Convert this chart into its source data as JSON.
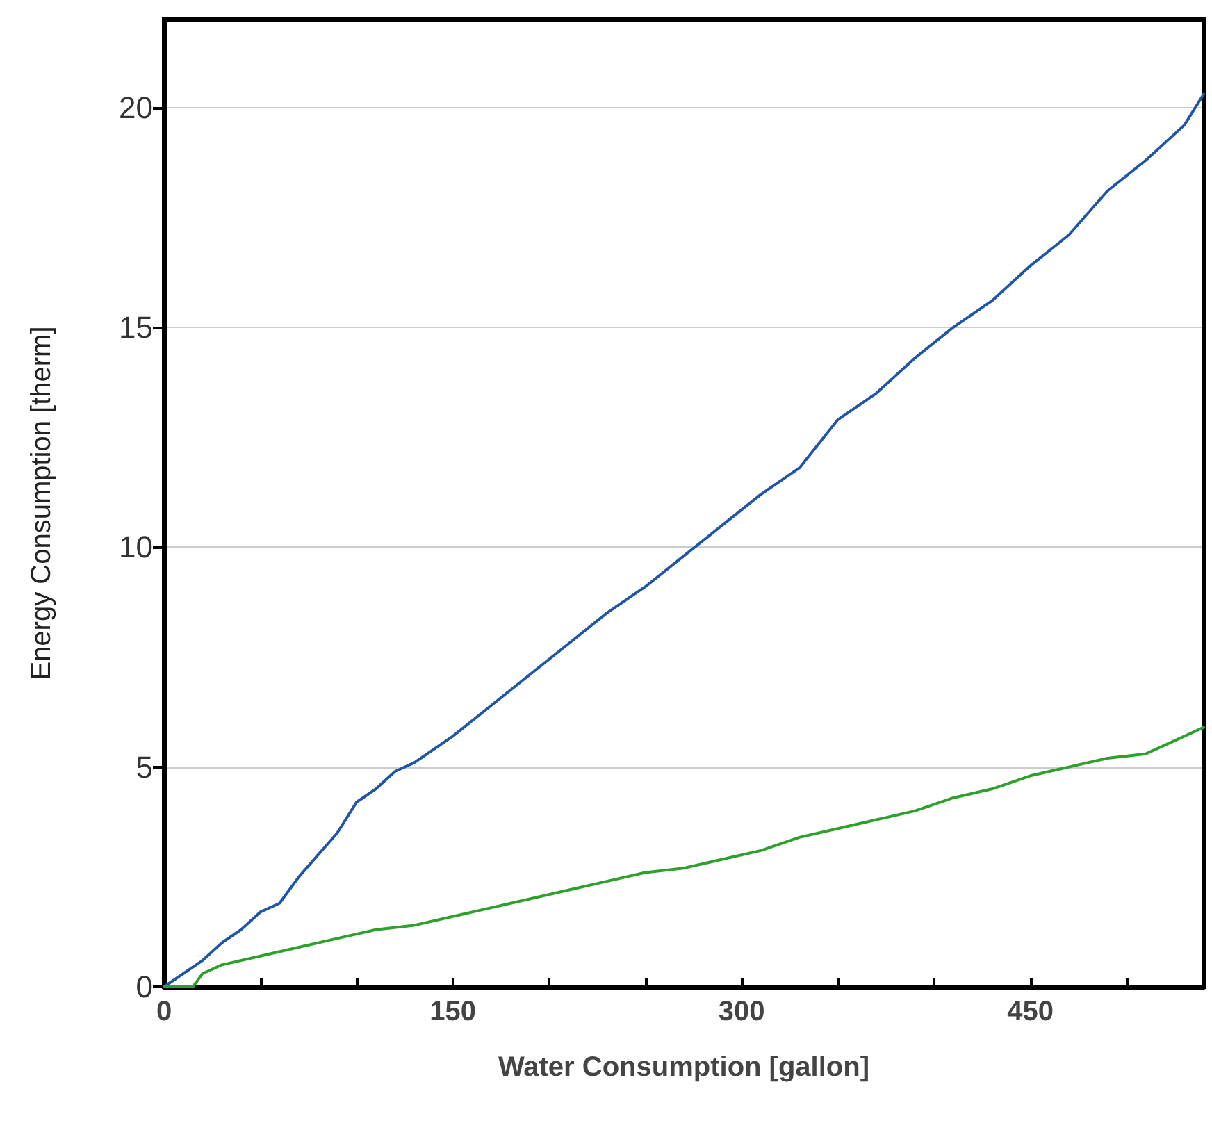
{
  "chart_data": {
    "type": "line",
    "xlabel": "Water Consumption [gallon]",
    "ylabel": "Energy Consumption [therm]",
    "xlim": [
      0,
      540
    ],
    "ylim": [
      0,
      22
    ],
    "xticks": [
      0,
      {
        "value": 50,
        "label": null
      },
      {
        "value": 100,
        "label": null
      },
      150,
      {
        "value": 200,
        "label": null
      },
      {
        "value": 250,
        "label": null
      },
      300,
      {
        "value": 350,
        "label": null
      },
      {
        "value": 400,
        "label": null
      },
      450,
      {
        "value": 500,
        "label": null
      }
    ],
    "yticks": [
      0,
      5,
      10,
      15,
      20
    ],
    "grid": "y",
    "marker": "none",
    "line_style": "solid",
    "series": [
      {
        "color": "#1f56a8",
        "x": [
          0,
          10,
          20,
          30,
          40,
          50,
          60,
          70,
          80,
          90,
          100,
          110,
          120,
          130,
          150,
          170,
          190,
          210,
          230,
          250,
          270,
          290,
          310,
          330,
          350,
          370,
          390,
          410,
          430,
          450,
          470,
          490,
          510,
          530,
          540
        ],
        "values": [
          0,
          0.3,
          0.6,
          1.0,
          1.3,
          1.7,
          1.9,
          2.5,
          3.0,
          3.5,
          4.2,
          4.5,
          4.9,
          5.1,
          5.7,
          6.4,
          7.1,
          7.8,
          8.5,
          9.1,
          9.8,
          10.5,
          11.2,
          11.8,
          12.9,
          13.5,
          14.3,
          15.0,
          15.6,
          16.4,
          17.1,
          18.1,
          18.8,
          19.6,
          20.3
        ]
      },
      {
        "color": "#2ea02c",
        "x": [
          0,
          15,
          20,
          30,
          50,
          70,
          90,
          110,
          130,
          150,
          170,
          190,
          210,
          230,
          250,
          270,
          290,
          310,
          330,
          350,
          370,
          390,
          410,
          430,
          450,
          470,
          490,
          510,
          530,
          540
        ],
        "values": [
          0,
          0,
          0.3,
          0.5,
          0.7,
          0.9,
          1.1,
          1.3,
          1.4,
          1.6,
          1.8,
          2.0,
          2.2,
          2.4,
          2.6,
          2.7,
          2.9,
          3.1,
          3.4,
          3.6,
          3.8,
          4.0,
          4.3,
          4.5,
          4.8,
          5.0,
          5.2,
          5.3,
          5.7,
          5.9
        ]
      }
    ]
  }
}
